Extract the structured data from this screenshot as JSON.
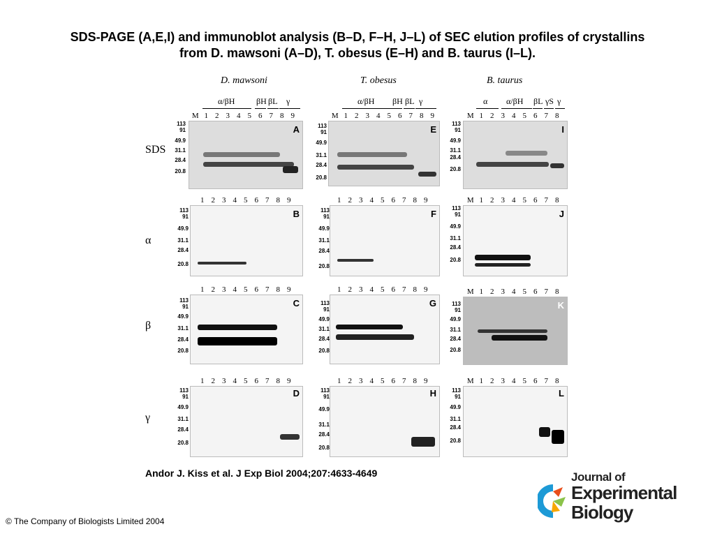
{
  "title": {
    "line1": "SDS-PAGE (A,E,I) and immunoblot analysis (B–D, F–H, J–L) of SEC elution profiles of crystallins",
    "line2": "from D. mawsoni (A–D), T. obesus (E–H) and B. taurus (I–L)."
  },
  "species": [
    "D. mawsoni",
    "T. obesus",
    "B. taurus"
  ],
  "row_labels": [
    "SDS",
    "α",
    "β",
    "γ"
  ],
  "groups": {
    "a": [
      "α/βH",
      "βH",
      "βL",
      "γ"
    ],
    "i": [
      "α",
      "α/βH",
      "βL",
      "γS",
      "γ"
    ]
  },
  "lane_numbers_9": [
    "1",
    "2",
    "3",
    "4",
    "5",
    "6",
    "7",
    "8",
    "9"
  ],
  "lane_numbers_8": [
    "1",
    "2",
    "3",
    "4",
    "5",
    "6",
    "7",
    "8"
  ],
  "marker_lane": "M",
  "markers": [
    "113",
    "91",
    "49.9",
    "31.1",
    "28.4",
    "20.8"
  ],
  "panels": [
    "A",
    "B",
    "C",
    "D",
    "E",
    "F",
    "G",
    "H",
    "I",
    "J",
    "K",
    "L"
  ],
  "citation": "Andor J. Kiss et al. J Exp Biol 2004;207:4633-4649",
  "copyright": "© The Company of Biologists Limited 2004",
  "logo": {
    "line1": "Journal of",
    "line2": "Experimental",
    "line3": "Biology"
  }
}
